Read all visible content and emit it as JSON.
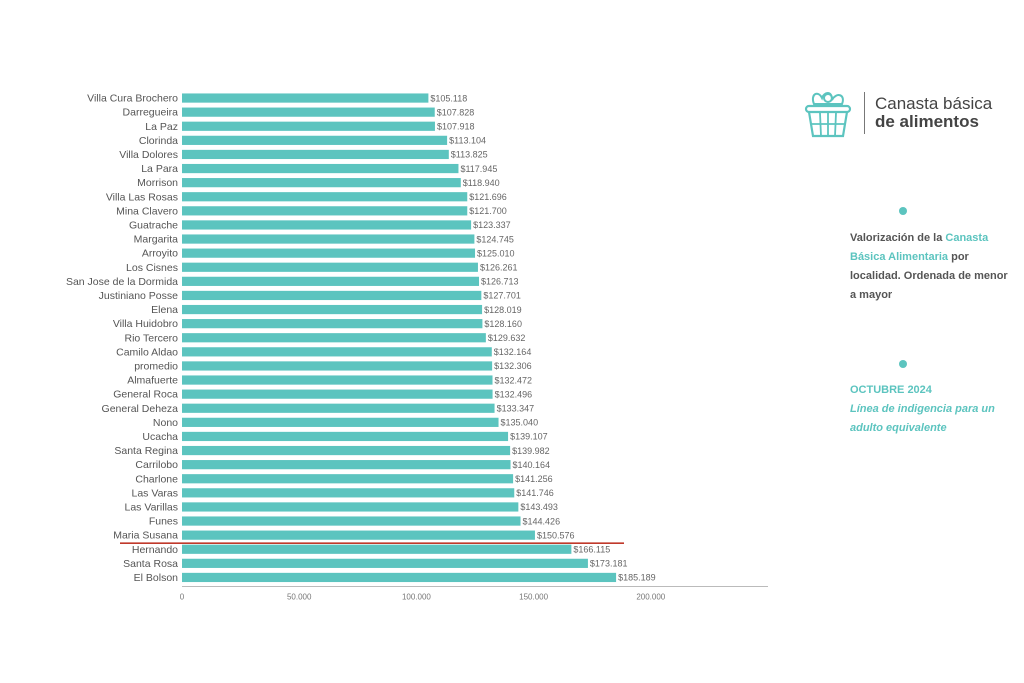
{
  "chart_data": {
    "type": "bar",
    "orientation": "horizontal",
    "categories": [
      "Villa Cura Brochero",
      "Darregueira",
      "La Paz",
      "Clorinda",
      "Villa Dolores",
      "La Para",
      "Morrison",
      "Villa Las Rosas",
      "Mina Clavero",
      "Guatrache",
      "Margarita",
      "Arroyito",
      "Los Cisnes",
      "San Jose de la Dormida",
      "Justiniano Posse",
      "Elena",
      "Villa Huidobro",
      "Rio Tercero",
      "Camilo Aldao",
      "promedio",
      "Almafuerte",
      "General Roca",
      "General Deheza",
      "Nono",
      "Ucacha",
      "Santa Regina",
      "Carrilobo",
      "Charlone",
      "Las Varas",
      "Las Varillas",
      "Funes",
      "Maria Susana",
      "Hernando",
      "Santa Rosa",
      "El Bolson"
    ],
    "values": [
      105118,
      107828,
      107918,
      113104,
      113825,
      117945,
      118940,
      121696,
      121700,
      123337,
      124745,
      125010,
      126261,
      126713,
      127701,
      128019,
      128160,
      129632,
      132164,
      132306,
      132472,
      132496,
      133347,
      135040,
      139107,
      139982,
      140164,
      141256,
      141746,
      143493,
      144426,
      150576,
      166115,
      173181,
      185189
    ],
    "value_labels": [
      "$105.118",
      "$107.828",
      "$107.918",
      "$113.104",
      "$113.825",
      "$117.945",
      "$118.940",
      "$121.696",
      "$121.700",
      "$123.337",
      "$124.745",
      "$125.010",
      "$126.261",
      "$126.713",
      "$127.701",
      "$128.019",
      "$128.160",
      "$129.632",
      "$132.164",
      "$132.306",
      "$132.472",
      "$132.496",
      "$133.347",
      "$135.040",
      "$139.107",
      "$139.982",
      "$140.164",
      "$141.256",
      "$141.746",
      "$143.493",
      "$144.426",
      "$150.576",
      "$166.115",
      "$173.181",
      "$185.189"
    ],
    "highlight": "Hernando",
    "highlight_color": "#c0392b",
    "bar_color": "#5cc4bf",
    "xlim": [
      0,
      250000
    ],
    "x_ticks": [
      0,
      50000,
      100000,
      150000,
      200000
    ],
    "x_tick_labels": [
      "0",
      "50.000",
      "100.000",
      "150.000",
      "200.000"
    ],
    "title": "",
    "xlabel": "",
    "ylabel": ""
  },
  "logo": {
    "line1": "Canasta básica",
    "line2": "de alimentos",
    "icon": "food-basket-icon"
  },
  "description": {
    "part1": "Valorización de la",
    "accent": "Canasta Básica Alimentaria",
    "part2": "por localidad. Ordenada de menor a mayor"
  },
  "period": {
    "date": "OCTUBRE  2024",
    "line": "Línea de indigencia para un adulto equivalente"
  },
  "colors": {
    "accent": "#5cc4bf",
    "text": "#555555"
  }
}
